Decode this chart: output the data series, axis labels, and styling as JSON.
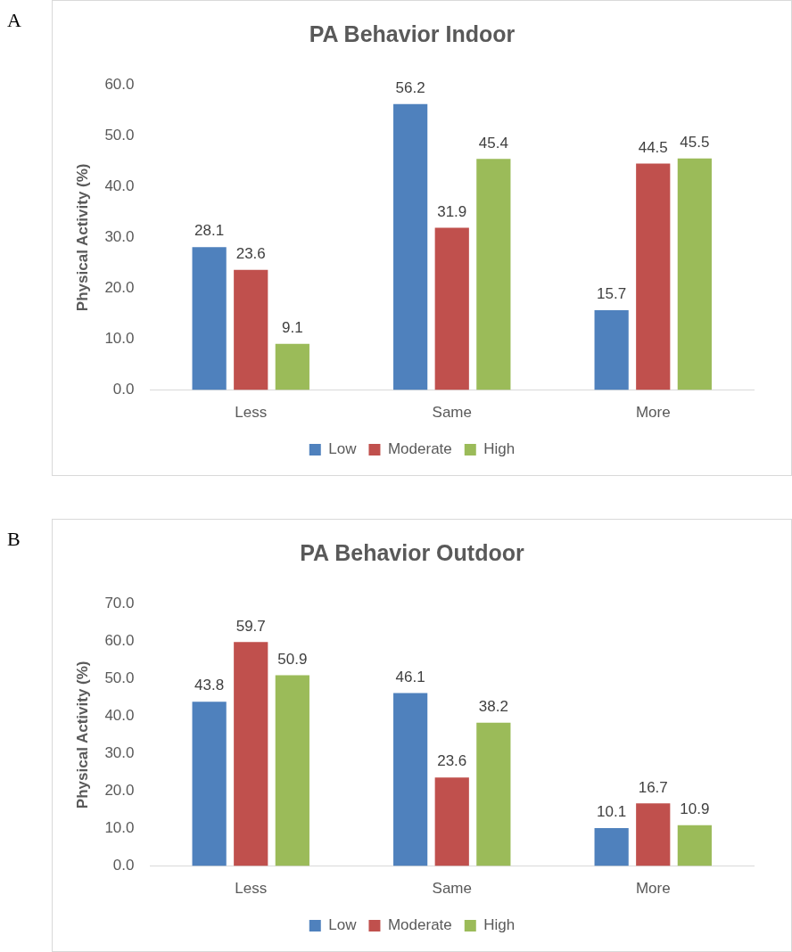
{
  "chart_data": [
    {
      "type": "bar",
      "title": "PA Behavior Indoor",
      "ylabel": "Physical Activity (%)",
      "annotations": [
        "A"
      ],
      "categories": [
        "Less",
        "Same",
        "More"
      ],
      "series": [
        {
          "name": "Low",
          "color": "#4f81bd",
          "values": [
            28.1,
            56.2,
            15.7
          ]
        },
        {
          "name": "Moderate",
          "color": "#c0504d",
          "values": [
            23.6,
            31.9,
            44.5
          ]
        },
        {
          "name": "High",
          "color": "#9bbb59",
          "values": [
            9.1,
            45.4,
            45.5
          ]
        }
      ],
      "ylim": [
        0,
        60
      ],
      "yticks": [
        {
          "value": 0,
          "label": "0.0"
        },
        {
          "value": 10,
          "label": "10.0"
        },
        {
          "value": 20,
          "label": "20.0"
        },
        {
          "value": 30,
          "label": "30.0"
        },
        {
          "value": 40,
          "label": "40.0"
        },
        {
          "value": 50,
          "label": "50.0"
        },
        {
          "value": 60,
          "label": "60.0"
        }
      ],
      "grid": false,
      "legend": "bottom",
      "data_labels": true
    },
    {
      "type": "bar",
      "title": "PA Behavior Outdoor",
      "ylabel": "Physical Activity (%)",
      "annotations": [
        "B"
      ],
      "categories": [
        "Less",
        "Same",
        "More"
      ],
      "series": [
        {
          "name": "Low",
          "color": "#4f81bd",
          "values": [
            43.8,
            46.1,
            10.1
          ]
        },
        {
          "name": "Moderate",
          "color": "#c0504d",
          "values": [
            59.7,
            23.6,
            16.7
          ]
        },
        {
          "name": "High",
          "color": "#9bbb59",
          "values": [
            50.9,
            38.2,
            10.9
          ]
        }
      ],
      "ylim": [
        0,
        70
      ],
      "yticks": [
        {
          "value": 0,
          "label": "0.0"
        },
        {
          "value": 10,
          "label": "10.0"
        },
        {
          "value": 20,
          "label": "20.0"
        },
        {
          "value": 30,
          "label": "30.0"
        },
        {
          "value": 40,
          "label": "40.0"
        },
        {
          "value": 50,
          "label": "50.0"
        },
        {
          "value": 60,
          "label": "60.0"
        },
        {
          "value": 70,
          "label": "70.0"
        }
      ],
      "grid": false,
      "legend": "bottom",
      "data_labels": true
    }
  ]
}
